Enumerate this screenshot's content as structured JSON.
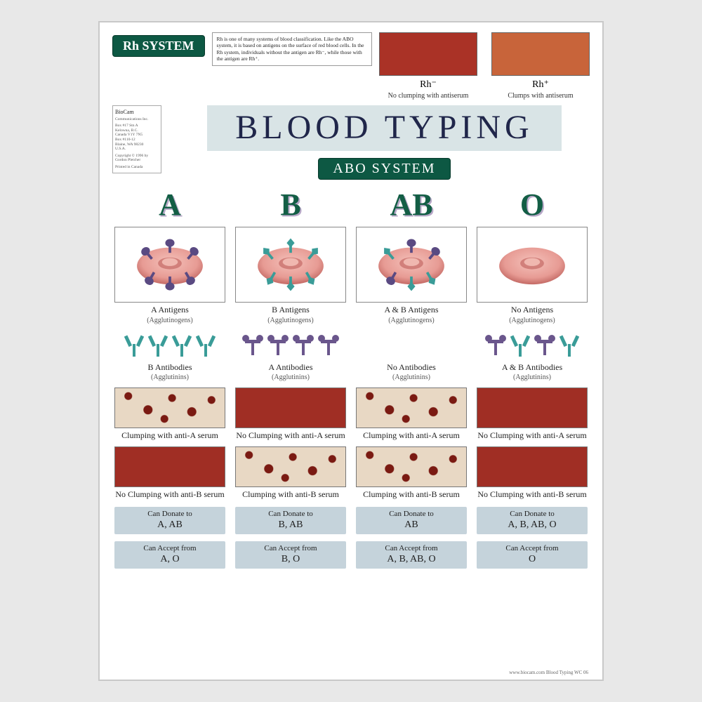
{
  "rh": {
    "badge": "Rh SYSTEM",
    "description": "Rh is one of many systems of blood classification. Like the ABO system, it is based on antigens on the surface of red blood cells. In the Rh system, individuals without the antigen are Rh⁻, while those with the antigen are Rh⁺.",
    "minus": {
      "title": "Rh⁻",
      "caption": "No clumping with antiserum",
      "color": "#aa3226"
    },
    "plus": {
      "title": "Rh⁺",
      "caption": "Clumps with antiserum",
      "color": "#c8643a"
    }
  },
  "publisher": {
    "name": "BioCam",
    "sub": "Communications Inc.",
    "address_lines": [
      "Box #17 Stn A",
      "Kelowna, B.C.",
      "Canada V1Y 7N5",
      "Box #110-12",
      "Blaine, WA 98230",
      "U.S.A."
    ],
    "copyright": "Copyright © 1996 by Gordon Pletcher",
    "printed": "Printed in Canada"
  },
  "title": "BLOOD TYPING",
  "subtitle": "ABO SYSTEM",
  "colors": {
    "green": "#135e45",
    "badge_bg": "#0d5843",
    "title_bg": "#d9e4e6",
    "title_fg": "#20264a",
    "chip_bg": "#c5d3db",
    "rbc": "#e79b94",
    "rbc_shadow": "#c46a65",
    "antigen_a": "#5a4a82",
    "antigen_b": "#3a9c98",
    "antibody_b": "#3a9c98",
    "antibody_a": "#6a568c",
    "clump_bg": "#e8d8c4",
    "clump_dot": "#7a1a12",
    "noclump": "#a02e24"
  },
  "types": [
    {
      "letter": "A",
      "antigen_label": "A Antigens",
      "antigen_sub": "(Agglutinogens)",
      "has_a_antigen": true,
      "has_b_antigen": false,
      "antibody_label": "B Antibodies",
      "antibody_sub": "(Agglutinins)",
      "has_a_antibody": false,
      "has_b_antibody": true,
      "serum_a": {
        "clumps": true,
        "text": "Clumping with anti-A serum"
      },
      "serum_b": {
        "clumps": false,
        "text": "No Clumping with anti-B serum"
      },
      "donate_label": "Can Donate to",
      "donate": "A, AB",
      "accept_label": "Can Accept from",
      "accept": "A, O"
    },
    {
      "letter": "B",
      "antigen_label": "B Antigens",
      "antigen_sub": "(Agglutinogens)",
      "has_a_antigen": false,
      "has_b_antigen": true,
      "antibody_label": "A Antibodies",
      "antibody_sub": "(Agglutinins)",
      "has_a_antibody": true,
      "has_b_antibody": false,
      "serum_a": {
        "clumps": false,
        "text": "No Clumping with anti-A serum"
      },
      "serum_b": {
        "clumps": true,
        "text": "Clumping with anti-B serum"
      },
      "donate_label": "Can Donate to",
      "donate": "B, AB",
      "accept_label": "Can Accept from",
      "accept": "B, O"
    },
    {
      "letter": "AB",
      "antigen_label": "A & B Antigens",
      "antigen_sub": "(Agglutinogens)",
      "has_a_antigen": true,
      "has_b_antigen": true,
      "antibody_label": "No Antibodies",
      "antibody_sub": "(Agglutinins)",
      "has_a_antibody": false,
      "has_b_antibody": false,
      "serum_a": {
        "clumps": true,
        "text": "Clumping with anti-A serum"
      },
      "serum_b": {
        "clumps": true,
        "text": "Clumping with anti-B serum"
      },
      "donate_label": "Can Donate to",
      "donate": "AB",
      "accept_label": "Can Accept from",
      "accept": "A, B, AB, O"
    },
    {
      "letter": "O",
      "antigen_label": "No Antigens",
      "antigen_sub": "(Agglutinogens)",
      "has_a_antigen": false,
      "has_b_antigen": false,
      "antibody_label": "A & B Antibodies",
      "antibody_sub": "(Agglutinins)",
      "has_a_antibody": true,
      "has_b_antibody": true,
      "serum_a": {
        "clumps": false,
        "text": "No Clumping with anti-A serum"
      },
      "serum_b": {
        "clumps": false,
        "text": "No Clumping with anti-B serum"
      },
      "donate_label": "Can Donate to",
      "donate": "A, B, AB, O",
      "accept_label": "Can Accept from",
      "accept": "O"
    }
  ],
  "footer": "www.biocam.com   Blood Typing  WC 06"
}
